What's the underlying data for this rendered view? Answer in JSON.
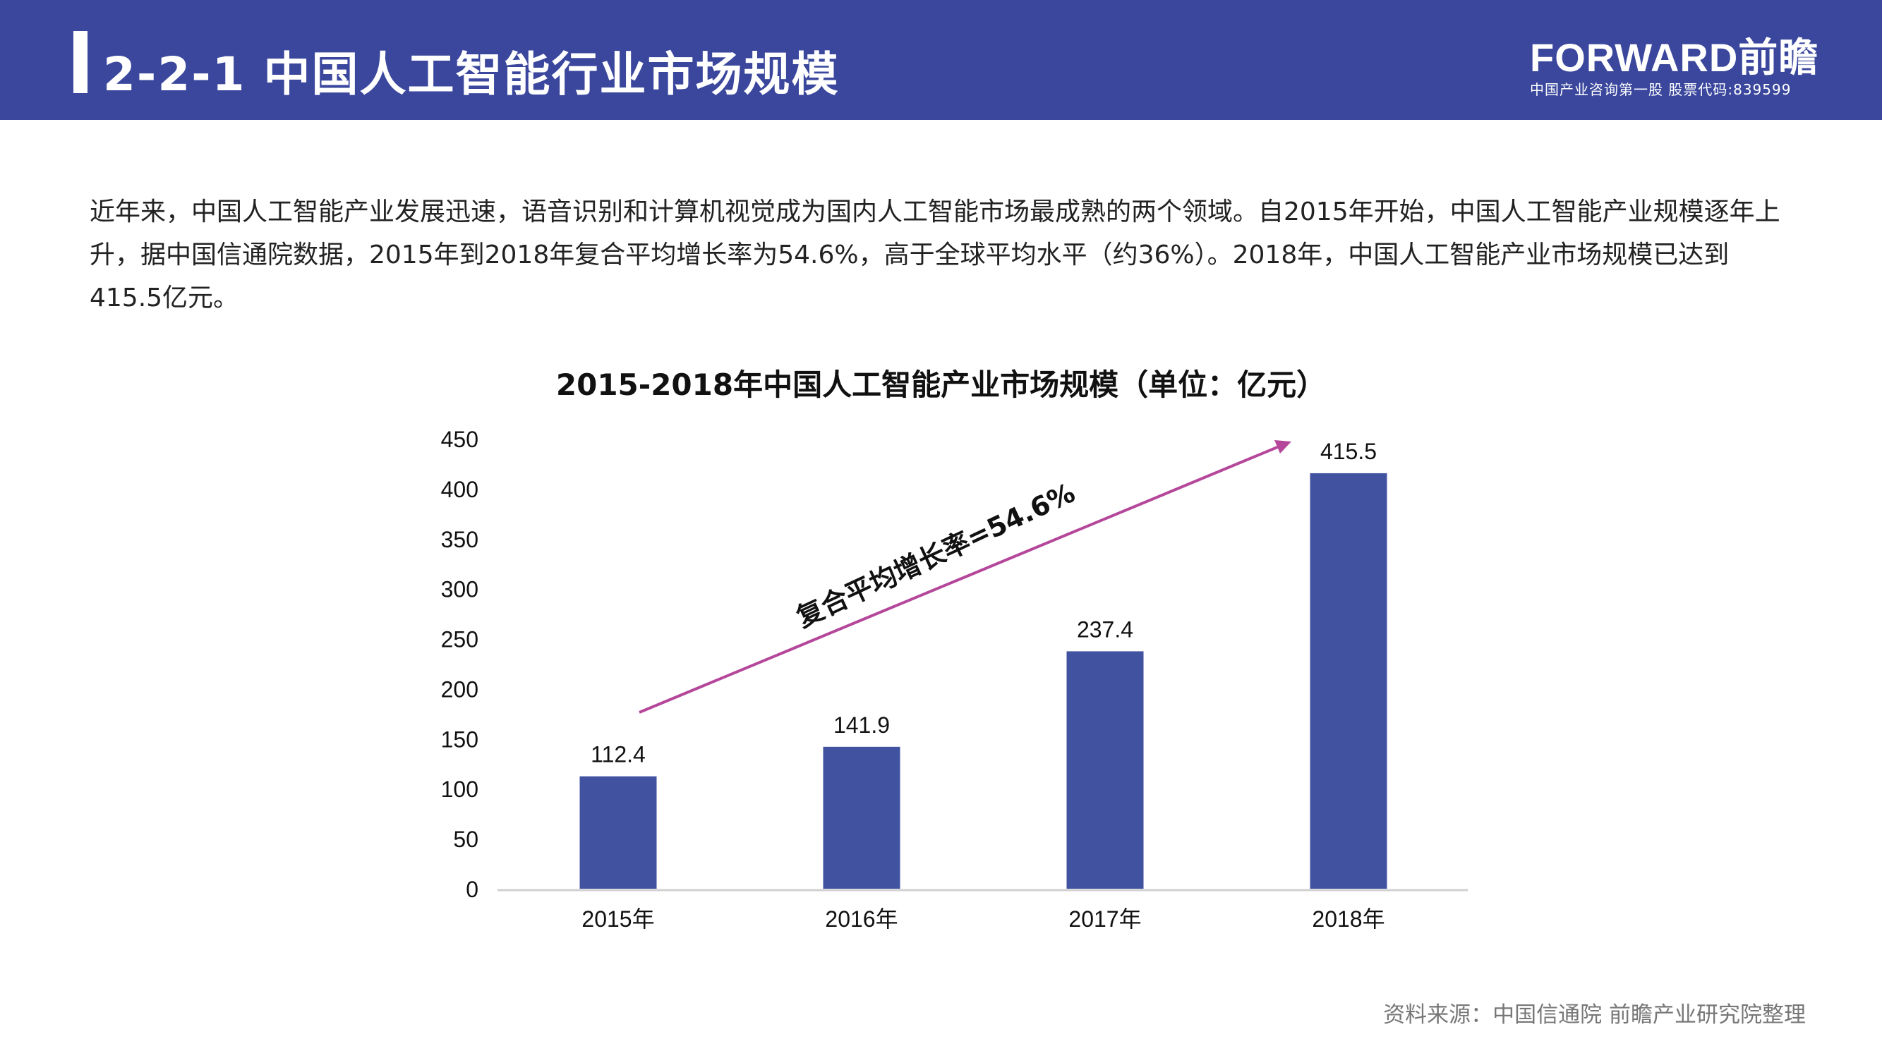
{
  "header": {
    "title": "2-2-1  中国人工智能行业市场规模",
    "logo_brand": "FORWARD前瞻",
    "logo_tagline": "中国产业咨询第一股  股票代码:839599"
  },
  "paragraph": "近年来，中国人工智能产业发展迅速，语音识别和计算机视觉成为国内人工智能市场最成熟的两个领域。自2015年开始，中国人工智能产业规模逐年上升，据中国信通院数据，2015年到2018年复合平均增长率为54.6%，高于全球平均水平（约36%）。2018年，中国人工智能产业市场规模已达到415.5亿元。",
  "chart_data": {
    "type": "bar",
    "title": "2015-2018年中国人工智能产业市场规模（单位：亿元）",
    "categories": [
      "2015年",
      "2016年",
      "2017年",
      "2018年"
    ],
    "values": [
      112.4,
      141.9,
      237.4,
      415.5
    ],
    "data_labels": [
      "112.4",
      "141.9",
      "237.4",
      "415.5"
    ],
    "ylim": [
      0,
      450
    ],
    "yticks": [
      "0",
      "50",
      "100",
      "150",
      "200",
      "250",
      "300",
      "350",
      "400",
      "450"
    ],
    "grid": false,
    "bar_color": "#4152a0",
    "annotation": {
      "text": "复合平均增长率=54.6%",
      "arrow_color": "#b5479b"
    }
  },
  "source": "资料来源：中国信通院 前瞻产业研究院整理"
}
